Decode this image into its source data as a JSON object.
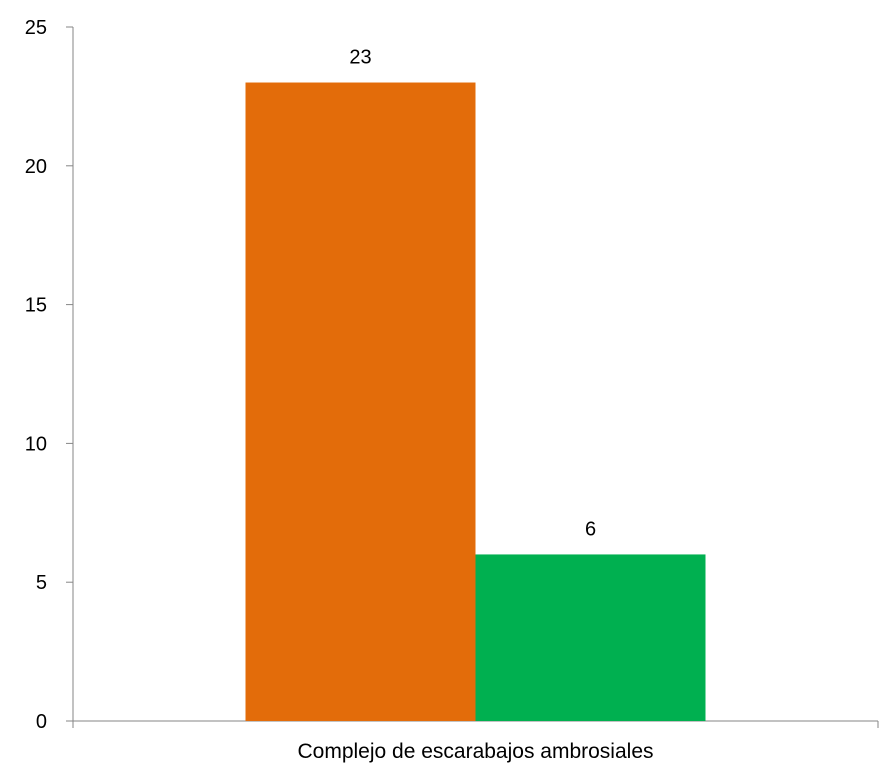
{
  "chart_data": {
    "type": "bar",
    "title": "",
    "xlabel": "",
    "ylabel": "",
    "categories": [
      "Complejo de escarabajos ambrosiales"
    ],
    "series": [
      {
        "values": [
          23
        ],
        "color": "#E36C0A"
      },
      {
        "values": [
          6
        ],
        "color": "#00B050"
      }
    ],
    "ylim": [
      0,
      25
    ],
    "yticks": [
      0,
      5,
      10,
      15,
      20,
      25
    ],
    "ytick_labels": [
      "0",
      "5",
      "10",
      "15",
      "20",
      "25"
    ],
    "data_labels": [
      "23",
      "6"
    ],
    "grid": false,
    "legend": "none"
  }
}
